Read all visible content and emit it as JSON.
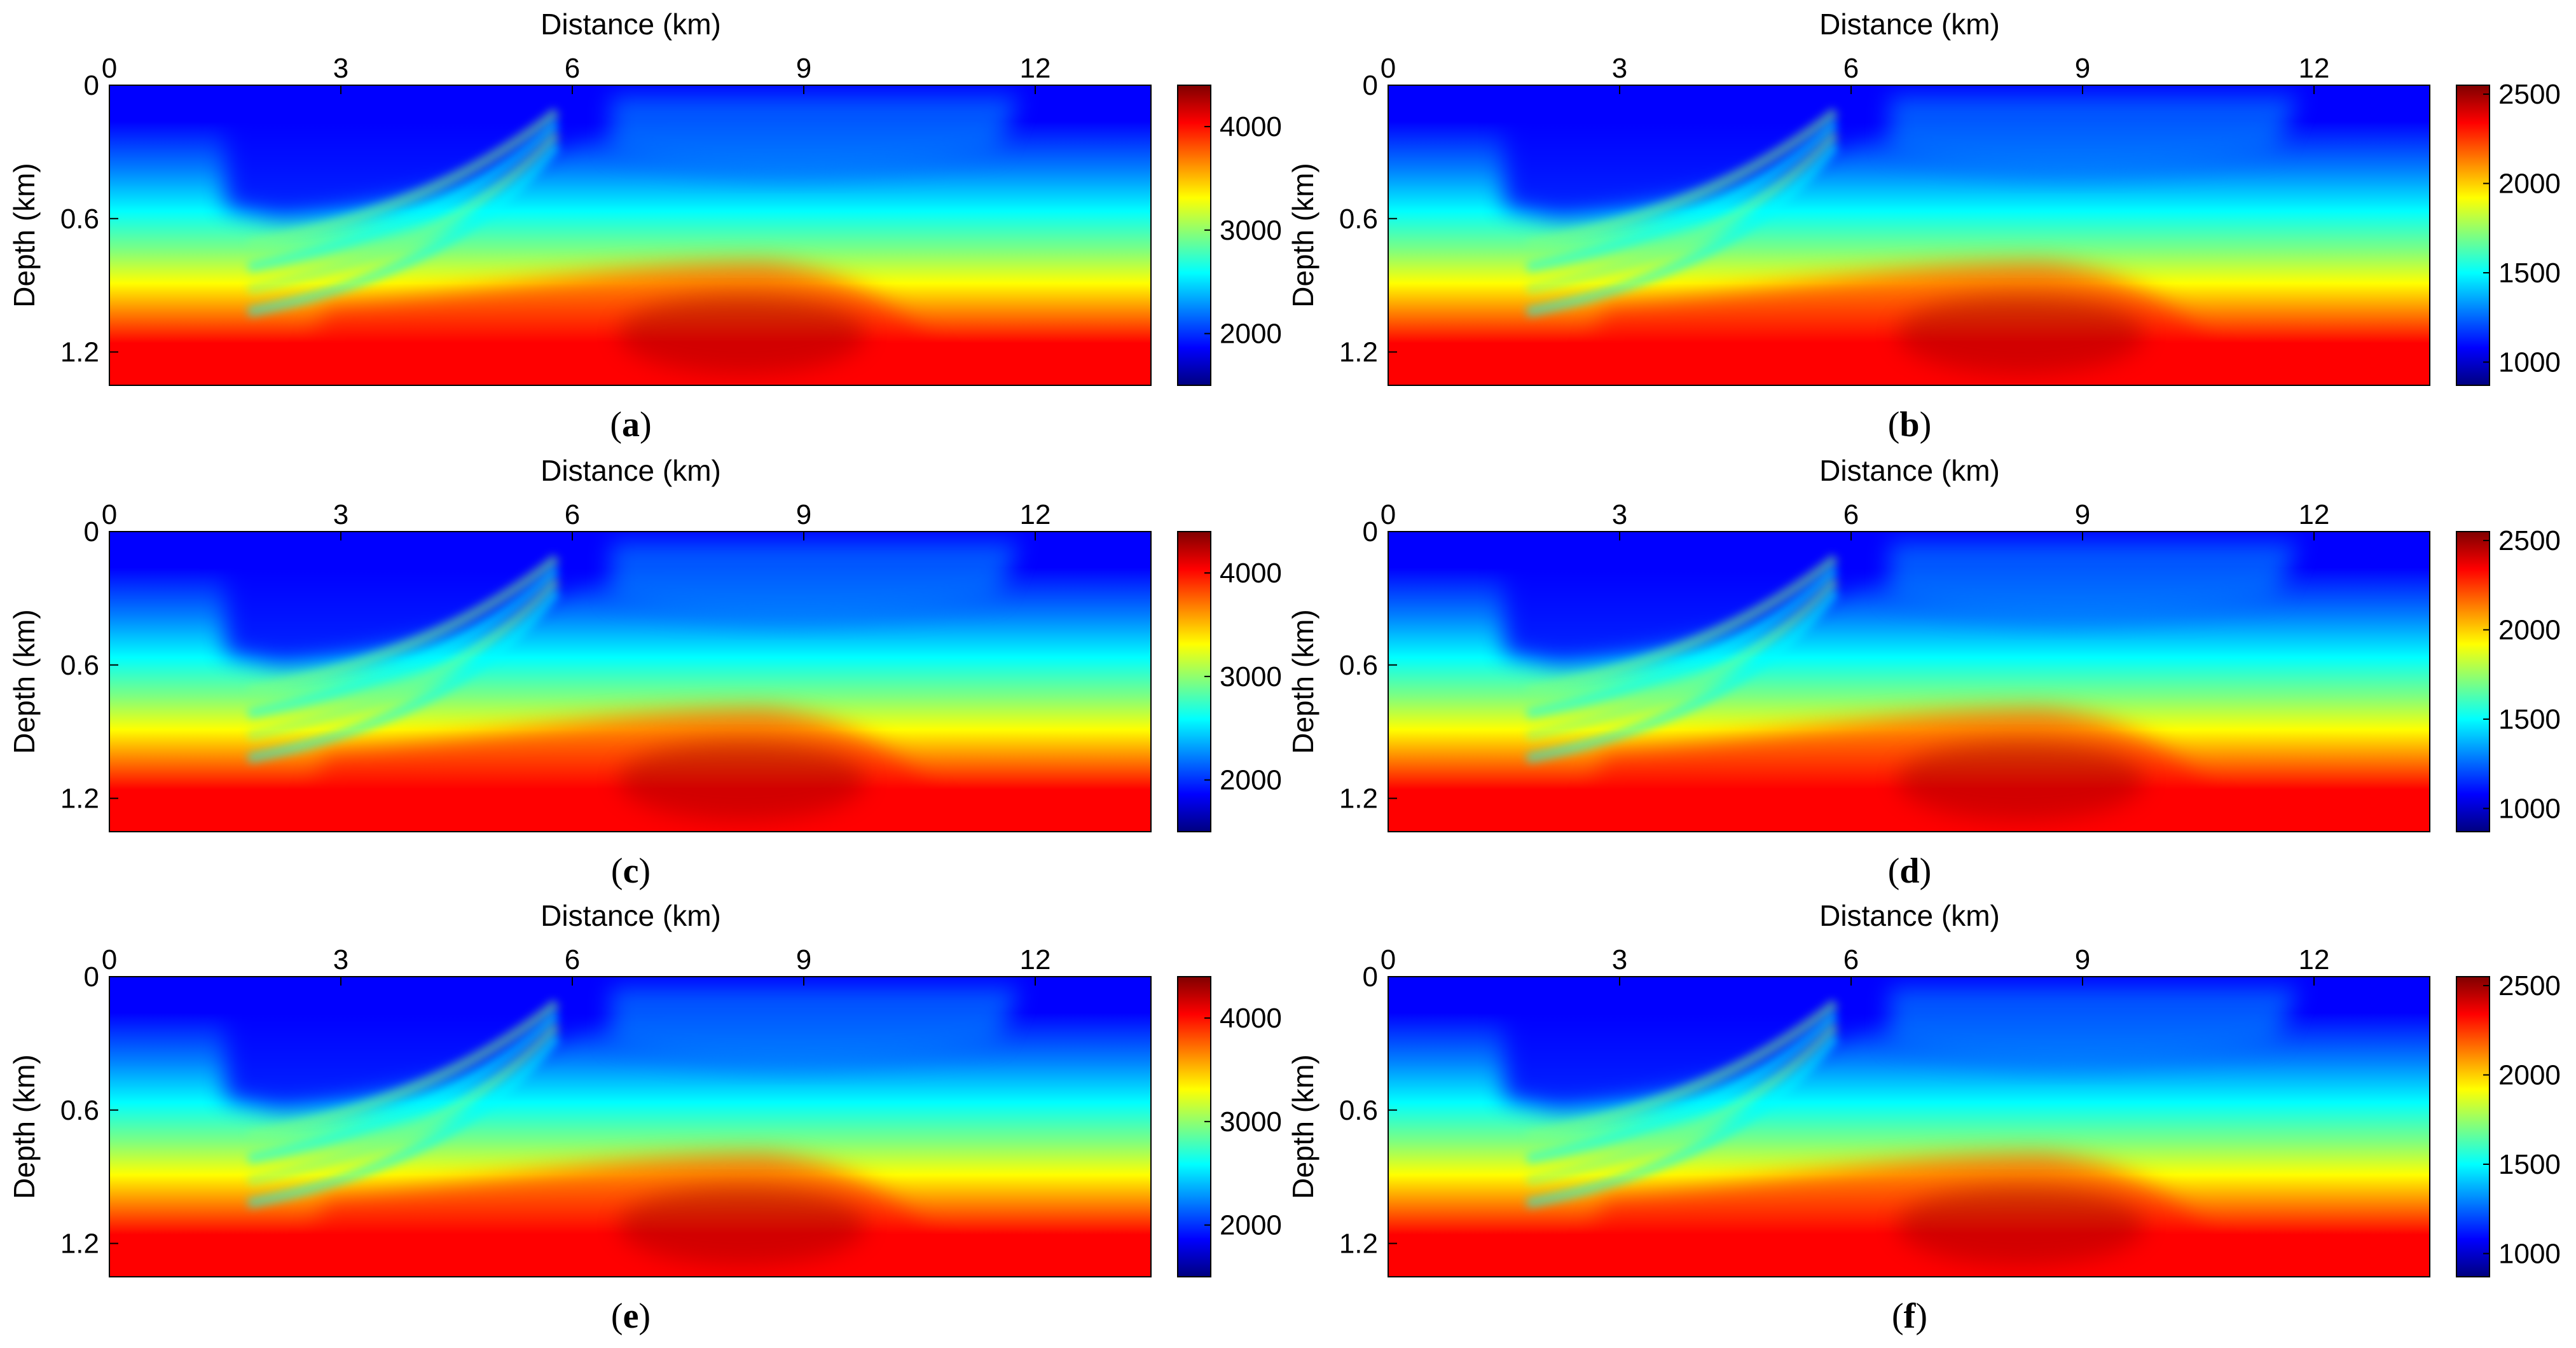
{
  "figure": {
    "description_labels": [
      "(a)",
      "(b)",
      "(c)",
      "(d)",
      "(e)",
      "(f)"
    ]
  },
  "chart_data": [
    {
      "id": "a",
      "type": "heatmap",
      "panel_label": "a",
      "xlabel": "Distance (km)",
      "ylabel": "Depth (km)",
      "xlim": [
        0,
        13.5
      ],
      "ylim": [
        1.35,
        0
      ],
      "xticks": [
        0,
        3,
        6,
        9,
        12
      ],
      "xtick_labels": [
        "0",
        "3",
        "6",
        "9",
        "12"
      ],
      "yticks": [
        0,
        0.6,
        1.2
      ],
      "ytick_labels": [
        "0",
        "0.6",
        "1.2"
      ],
      "colorbar": {
        "min": 1500,
        "max": 4400,
        "ticks": [
          2000,
          3000,
          4000
        ],
        "tick_labels": [
          "2000",
          "3000",
          "4000"
        ]
      }
    },
    {
      "id": "b",
      "type": "heatmap",
      "panel_label": "b",
      "xlabel": "Distance (km)",
      "ylabel": "Depth (km)",
      "xlim": [
        0,
        13.5
      ],
      "ylim": [
        1.35,
        0
      ],
      "xticks": [
        0,
        3,
        6,
        9,
        12
      ],
      "xtick_labels": [
        "0",
        "3",
        "6",
        "9",
        "12"
      ],
      "yticks": [
        0,
        0.6,
        1.2
      ],
      "ytick_labels": [
        "0",
        "0.6",
        "1.2"
      ],
      "colorbar": {
        "min": 870,
        "max": 2550,
        "ticks": [
          1000,
          1500,
          2000,
          2500
        ],
        "tick_labels": [
          "1000",
          "1500",
          "2000",
          "2500"
        ]
      }
    },
    {
      "id": "c",
      "type": "heatmap",
      "panel_label": "c",
      "xlabel": "Distance (km)",
      "ylabel": "Depth (km)",
      "xlim": [
        0,
        13.5
      ],
      "ylim": [
        1.35,
        0
      ],
      "xticks": [
        0,
        3,
        6,
        9,
        12
      ],
      "xtick_labels": [
        "0",
        "3",
        "6",
        "9",
        "12"
      ],
      "yticks": [
        0,
        0.6,
        1.2
      ],
      "ytick_labels": [
        "0",
        "0.6",
        "1.2"
      ],
      "colorbar": {
        "min": 1500,
        "max": 4400,
        "ticks": [
          2000,
          3000,
          4000
        ],
        "tick_labels": [
          "2000",
          "3000",
          "4000"
        ]
      }
    },
    {
      "id": "d",
      "type": "heatmap",
      "panel_label": "d",
      "xlabel": "Distance (km)",
      "ylabel": "Depth (km)",
      "xlim": [
        0,
        13.5
      ],
      "ylim": [
        1.35,
        0
      ],
      "xticks": [
        0,
        3,
        6,
        9,
        12
      ],
      "xtick_labels": [
        "0",
        "3",
        "6",
        "9",
        "12"
      ],
      "yticks": [
        0,
        0.6,
        1.2
      ],
      "ytick_labels": [
        "0",
        "0.6",
        "1.2"
      ],
      "colorbar": {
        "min": 870,
        "max": 2550,
        "ticks": [
          1000,
          1500,
          2000,
          2500
        ],
        "tick_labels": [
          "1000",
          "1500",
          "2000",
          "2500"
        ]
      }
    },
    {
      "id": "e",
      "type": "heatmap",
      "panel_label": "e",
      "xlabel": "Distance (km)",
      "ylabel": "Depth (km)",
      "xlim": [
        0,
        13.5
      ],
      "ylim": [
        1.35,
        0
      ],
      "xticks": [
        0,
        3,
        6,
        9,
        12
      ],
      "xtick_labels": [
        "0",
        "3",
        "6",
        "9",
        "12"
      ],
      "yticks": [
        0,
        0.6,
        1.2
      ],
      "ytick_labels": [
        "0",
        "0.6",
        "1.2"
      ],
      "colorbar": {
        "min": 1500,
        "max": 4400,
        "ticks": [
          2000,
          3000,
          4000
        ],
        "tick_labels": [
          "2000",
          "3000",
          "4000"
        ]
      }
    },
    {
      "id": "f",
      "type": "heatmap",
      "panel_label": "f",
      "xlabel": "Distance (km)",
      "ylabel": "Depth (km)",
      "xlim": [
        0,
        13.5
      ],
      "ylim": [
        1.35,
        0
      ],
      "xticks": [
        0,
        3,
        6,
        9,
        12
      ],
      "xtick_labels": [
        "0",
        "3",
        "6",
        "9",
        "12"
      ],
      "yticks": [
        0,
        0.6,
        1.2
      ],
      "ytick_labels": [
        "0",
        "0.6",
        "1.2"
      ],
      "colorbar": {
        "min": 870,
        "max": 2550,
        "ticks": [
          1000,
          1500,
          2000,
          2500
        ],
        "tick_labels": [
          "1000",
          "1500",
          "2000",
          "2500"
        ]
      }
    }
  ],
  "colormap": {
    "name": "jet",
    "stops": [
      "#00007f",
      "#0000ff",
      "#007fff",
      "#00ffff",
      "#7fff7f",
      "#ffff00",
      "#ff7f00",
      "#ff0000",
      "#7f0000"
    ]
  }
}
